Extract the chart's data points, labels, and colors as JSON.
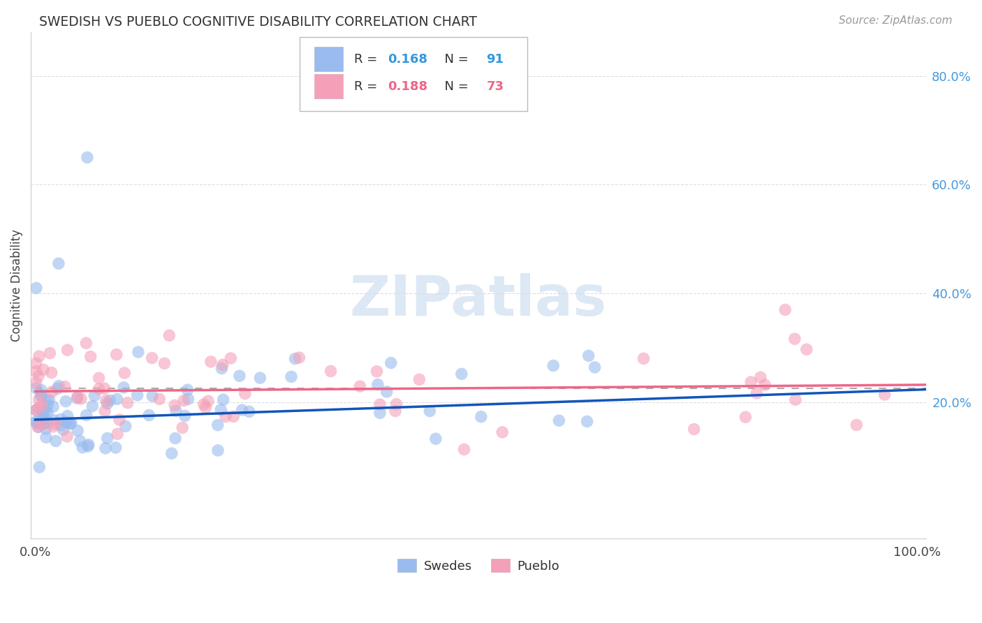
{
  "title": "SWEDISH VS PUEBLO COGNITIVE DISABILITY CORRELATION CHART",
  "source": "Source: ZipAtlas.com",
  "ylabel": "Cognitive Disability",
  "swedes_color": "#99bbee",
  "pueblo_color": "#f4a0b8",
  "trend_swedes_color": "#1155bb",
  "trend_pueblo_color": "#ee6688",
  "dashed_line_color": "#aaaaaa",
  "watermark_color": "#dde8f5",
  "background_color": "#ffffff",
  "grid_color": "#dddddd",
  "right_tick_color": "#4499dd",
  "legend_r1_color": "#3399dd",
  "legend_r2_color": "#ee6688",
  "ytick_vals": [
    0.2,
    0.4,
    0.6,
    0.8
  ],
  "ytick_labels": [
    "20.0%",
    "40.0%",
    "60.0%",
    "80.0%"
  ],
  "xlim": [
    -0.005,
    1.01
  ],
  "ylim": [
    -0.05,
    0.88
  ]
}
